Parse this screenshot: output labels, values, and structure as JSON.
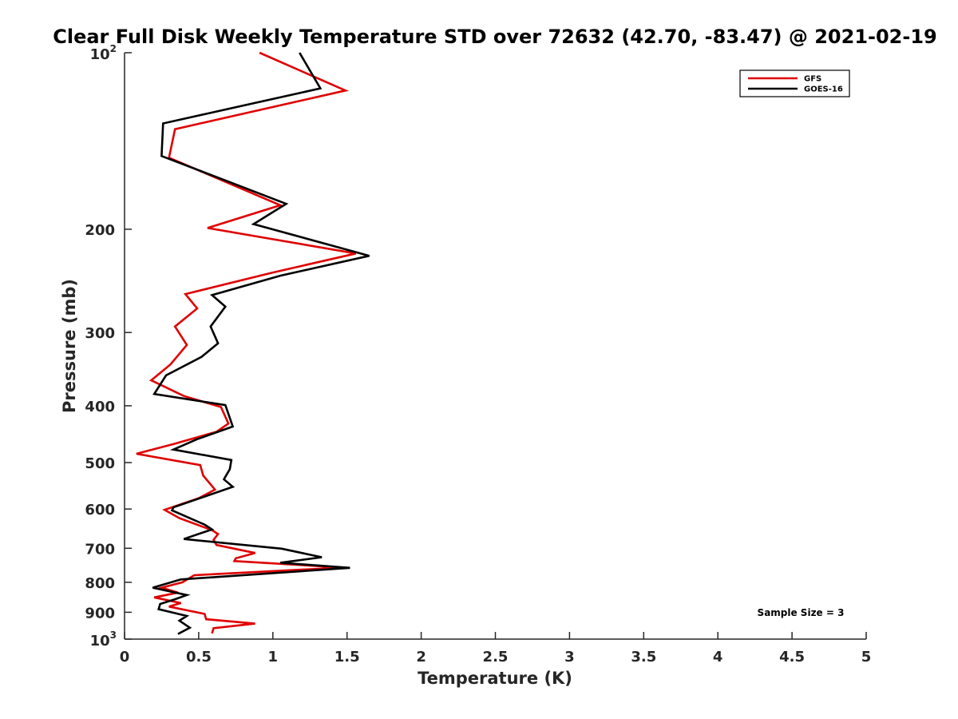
{
  "chart_data": {
    "type": "line",
    "title": "Clear Full Disk Weekly Temperature STD over 72632 (42.70, -83.47) @ 2021-02-19",
    "xlabel": "Temperature (K)",
    "ylabel": "Pressure (mb)",
    "xlim": [
      0,
      5
    ],
    "ylim": [
      100,
      1000
    ],
    "y_scale": "log",
    "y_reversed": true,
    "x_ticks": [
      0,
      0.5,
      1,
      1.5,
      2,
      2.5,
      3,
      3.5,
      4,
      4.5,
      5
    ],
    "x_tick_labels": [
      "0",
      "0.5",
      "1",
      "1.5",
      "2",
      "2.5",
      "3",
      "3.5",
      "4",
      "4.5",
      "5"
    ],
    "y_ticks": [
      {
        "value": 100,
        "base": "10",
        "exp": "2"
      },
      {
        "value": 200,
        "label": "200"
      },
      {
        "value": 300,
        "label": "300"
      },
      {
        "value": 400,
        "label": "400"
      },
      {
        "value": 500,
        "label": "500"
      },
      {
        "value": 600,
        "label": "600"
      },
      {
        "value": 700,
        "label": "700"
      },
      {
        "value": 800,
        "label": "800"
      },
      {
        "value": 900,
        "label": "900"
      },
      {
        "value": 1000,
        "base": "10",
        "exp": "3"
      }
    ],
    "grid": false,
    "legend_position": "top-right",
    "annotation": "Sample Size = 3",
    "series": [
      {
        "name": "GFS",
        "color": "#e00000",
        "points": [
          [
            0.91,
            100
          ],
          [
            1.49,
            116
          ],
          [
            0.34,
            135
          ],
          [
            0.3,
            151
          ],
          [
            1.05,
            182
          ],
          [
            0.56,
            199
          ],
          [
            1.56,
            220
          ],
          [
            1.0,
            237
          ],
          [
            0.41,
            258
          ],
          [
            0.49,
            273
          ],
          [
            0.34,
            293
          ],
          [
            0.42,
            315
          ],
          [
            0.31,
            340
          ],
          [
            0.18,
            362
          ],
          [
            0.4,
            385
          ],
          [
            0.65,
            402
          ],
          [
            0.7,
            429
          ],
          [
            0.62,
            443
          ],
          [
            0.33,
            465
          ],
          [
            0.08,
            483
          ],
          [
            0.51,
            505
          ],
          [
            0.53,
            526
          ],
          [
            0.61,
            556
          ],
          [
            0.5,
            575
          ],
          [
            0.27,
            602
          ],
          [
            0.37,
            622
          ],
          [
            0.59,
            652
          ],
          [
            0.63,
            662
          ],
          [
            0.6,
            677
          ],
          [
            0.62,
            691
          ],
          [
            0.88,
            713
          ],
          [
            0.75,
            728
          ],
          [
            0.74,
            736
          ],
          [
            1.47,
            755
          ],
          [
            0.47,
            778
          ],
          [
            0.39,
            800
          ],
          [
            0.25,
            817
          ],
          [
            0.36,
            833
          ],
          [
            0.2,
            849
          ],
          [
            0.38,
            868
          ],
          [
            0.3,
            880
          ],
          [
            0.54,
            906
          ],
          [
            0.55,
            925
          ],
          [
            0.88,
            941
          ],
          [
            0.6,
            958
          ],
          [
            0.59,
            978
          ]
        ]
      },
      {
        "name": "GOES-16",
        "color": "#000000",
        "points": [
          [
            1.18,
            100
          ],
          [
            1.32,
            115
          ],
          [
            0.26,
            132
          ],
          [
            0.25,
            150
          ],
          [
            1.09,
            181
          ],
          [
            0.87,
            196
          ],
          [
            1.65,
            222
          ],
          [
            1.05,
            240
          ],
          [
            0.59,
            259
          ],
          [
            0.68,
            271
          ],
          [
            0.58,
            293
          ],
          [
            0.63,
            313
          ],
          [
            0.52,
            330
          ],
          [
            0.28,
            355
          ],
          [
            0.2,
            382
          ],
          [
            0.68,
            399
          ],
          [
            0.73,
            434
          ],
          [
            0.49,
            456
          ],
          [
            0.33,
            475
          ],
          [
            0.72,
            495
          ],
          [
            0.71,
            513
          ],
          [
            0.67,
            534
          ],
          [
            0.73,
            550
          ],
          [
            0.33,
            596
          ],
          [
            0.32,
            603
          ],
          [
            0.54,
            638
          ],
          [
            0.59,
            650
          ],
          [
            0.4,
            675
          ],
          [
            1.06,
            701
          ],
          [
            1.33,
            725
          ],
          [
            1.05,
            741
          ],
          [
            1.52,
            756
          ],
          [
            0.38,
            791
          ],
          [
            0.19,
            817
          ],
          [
            0.42,
            841
          ],
          [
            0.34,
            855
          ],
          [
            0.24,
            871
          ],
          [
            0.23,
            889
          ],
          [
            0.42,
            913
          ],
          [
            0.37,
            930
          ],
          [
            0.44,
            956
          ],
          [
            0.36,
            980
          ]
        ]
      }
    ]
  }
}
